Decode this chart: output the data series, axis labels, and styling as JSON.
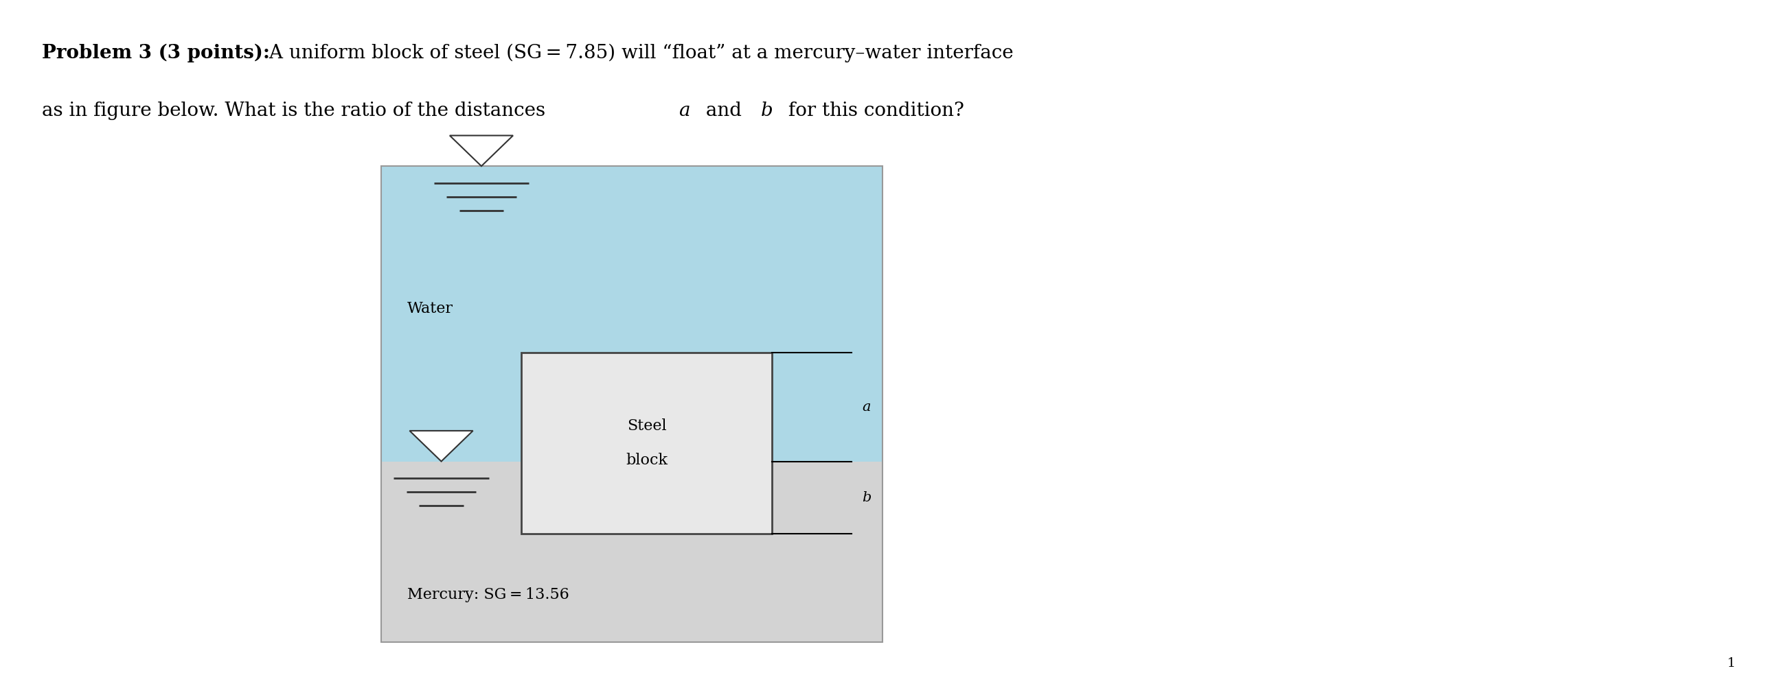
{
  "fig_width": 25.7,
  "fig_height": 10.0,
  "bg_color": "#ffffff",
  "bold_text": "Problem 3 (3 points):",
  "normal_text": " A uniform block of steel (SG = 7.85) will “float” at a mercury–water interface",
  "line2_pre": "as in figure below. What is the ratio of the distances ",
  "line2_a": "a",
  "line2_mid": " and ",
  "line2_b": "b",
  "line2_post": " for this condition?",
  "water_color": "#add8e6",
  "mercury_color": "#d3d3d3",
  "steel_color": "#e8e8e8",
  "steel_border": "#444444",
  "water_label": "Water",
  "mercury_label": "Mercury: SG = 13.56",
  "steel_label_line1": "Steel",
  "steel_label_line2": "block",
  "label_a": "a",
  "label_b": "b",
  "page_number": "1",
  "text_color": "#000000",
  "diagram_color": "#555555",
  "fontsize_title": 20,
  "fontsize_diagram": 16,
  "fontsize_label": 15
}
